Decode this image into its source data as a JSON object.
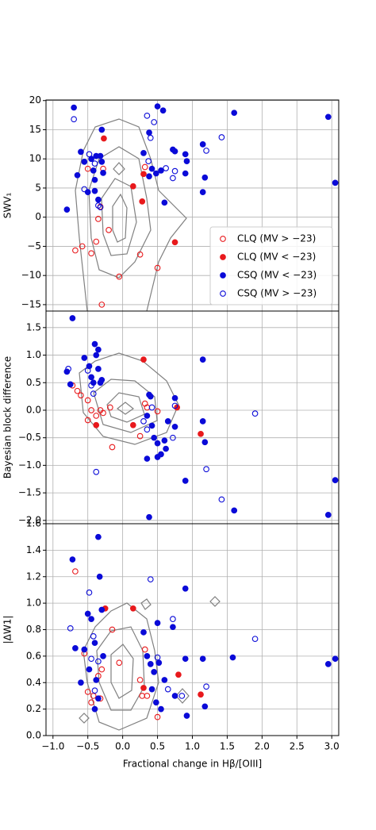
{
  "chart_data": [
    {
      "type": "scatter",
      "ylabel": "SWV₁",
      "xlim": [
        -1.1,
        3.1
      ],
      "ylim": [
        -16.1,
        20.1
      ],
      "yticks": [
        20,
        15,
        10,
        5,
        0,
        {
          "value": -5,
          "label": "−5"
        },
        {
          "value": -10,
          "label": "−10"
        },
        {
          "value": -15,
          "label": "−15"
        }
      ],
      "grid": true,
      "legend": "lower right",
      "series": [
        {
          "name": "CLQ (MV > −23)",
          "color": "#e8191c",
          "filled": false,
          "x": [
            -0.68,
            -0.58,
            -0.45,
            -0.38,
            -0.35,
            -0.32,
            -0.28,
            -0.2,
            -0.05,
            0.25,
            0.32,
            0.5,
            -0.3,
            -0.5
          ],
          "values": [
            -5.7,
            -5.0,
            -6.2,
            -4.2,
            -0.3,
            1.8,
            8.3,
            -2.2,
            -10.2,
            -6.4,
            8.6,
            -8.7,
            -15.0,
            8.3
          ]
        },
        {
          "name": "CLQ (MV < −23)",
          "color": "#e8191c",
          "filled": true,
          "x": [
            -0.27,
            0.15,
            0.28,
            0.3,
            0.75
          ],
          "values": [
            13.5,
            5.3,
            2.7,
            7.4,
            -4.3
          ]
        },
        {
          "name": "CSQ (MV < −23)",
          "color": "#0a0ad8",
          "filled": true,
          "x": [
            -0.7,
            -0.6,
            -0.65,
            -0.55,
            -0.5,
            -0.45,
            -0.42,
            -0.4,
            -0.38,
            -0.35,
            -0.32,
            -0.3,
            -0.28,
            -0.3,
            -0.4,
            -0.8,
            0.3,
            0.38,
            0.42,
            0.48,
            0.5,
            0.55,
            0.58,
            0.6,
            0.72,
            0.75,
            0.9,
            0.9,
            0.92,
            1.15,
            1.15,
            1.18,
            1.6,
            2.95,
            3.05,
            0.38
          ],
          "values": [
            18.8,
            11.2,
            7.2,
            9.5,
            4.3,
            10.0,
            8.0,
            6.4,
            10.5,
            3.0,
            10.5,
            15.0,
            7.6,
            9.5,
            4.5,
            1.3,
            11.0,
            14.5,
            8.3,
            7.5,
            19.0,
            8.0,
            18.3,
            2.5,
            11.6,
            11.3,
            10.8,
            7.5,
            9.6,
            12.5,
            4.3,
            6.8,
            17.9,
            17.2,
            5.9,
            7.0
          ]
        },
        {
          "name": "CSQ (MV > −23)",
          "color": "#0a0ad8",
          "filled": false,
          "x": [
            -0.7,
            -0.55,
            -0.48,
            -0.4,
            -0.35,
            -0.32,
            0.35,
            0.37,
            0.4,
            0.45,
            0.62,
            0.75,
            0.72,
            1.2,
            1.42
          ],
          "values": [
            16.8,
            4.8,
            10.8,
            9.2,
            2.0,
            1.7,
            17.4,
            9.6,
            13.6,
            16.3,
            8.4,
            7.9,
            6.7,
            11.4,
            13.7
          ]
        }
      ]
    },
    {
      "type": "scatter",
      "ylabel": "Bayesian block difference",
      "xlim": [
        -1.1,
        3.1
      ],
      "ylim": [
        -2.06,
        1.8
      ],
      "yticks": [
        1.5,
        {
          "value": 1,
          "label": "1.0"
        },
        0.5,
        {
          "value": 0,
          "label": "0.0"
        },
        {
          "value": -0.5,
          "label": "−0.5"
        },
        {
          "value": -1,
          "label": "−1.0"
        },
        {
          "value": -1.5,
          "label": "−1.5"
        },
        {
          "value": -2,
          "label": "−2.0"
        }
      ],
      "grid": true,
      "series": [
        {
          "color": "#e8191c",
          "filled": false,
          "x": [
            -0.72,
            -0.65,
            -0.6,
            -0.5,
            -0.45,
            -0.5,
            -0.38,
            -0.32,
            -0.28,
            -0.15,
            -0.18,
            0.25,
            0.32,
            0.35,
            0.5
          ],
          "values": [
            0.45,
            0.35,
            0.27,
            0.18,
            0.0,
            -0.18,
            -0.1,
            0.0,
            -0.05,
            -0.67,
            0.05,
            -0.47,
            0.12,
            0.05,
            -0.02
          ]
        },
        {
          "color": "#e8191c",
          "filled": true,
          "x": [
            -0.38,
            0.15,
            0.3,
            0.78,
            1.12
          ],
          "values": [
            -0.27,
            -0.27,
            0.92,
            0.05,
            -0.43
          ]
        },
        {
          "color": "#0a0ad8",
          "filled": true,
          "x": [
            -0.72,
            -0.8,
            -0.75,
            -0.55,
            -0.48,
            -0.45,
            -0.4,
            -0.38,
            -0.35,
            -0.32,
            -0.3,
            -0.42,
            -0.35,
            0.38,
            0.4,
            0.35,
            0.42,
            0.45,
            0.5,
            0.55,
            0.6,
            0.62,
            0.35,
            0.5,
            0.75,
            0.75,
            0.9,
            1.15,
            1.15,
            1.18,
            1.6,
            2.95,
            3.05,
            0.38,
            0.65
          ],
          "values": [
            1.67,
            0.7,
            0.47,
            0.95,
            0.8,
            0.6,
            1.2,
            1.0,
            1.1,
            0.5,
            0.55,
            0.5,
            0.75,
            0.28,
            0.25,
            -0.1,
            -0.28,
            -0.5,
            -0.6,
            -0.8,
            -0.55,
            -0.7,
            -0.88,
            -0.85,
            0.22,
            -0.3,
            -1.28,
            0.92,
            -0.2,
            -0.58,
            -1.82,
            -1.9,
            -1.27,
            -1.94,
            -0.2
          ]
        },
        {
          "color": "#0a0ad8",
          "filled": false,
          "x": [
            -0.78,
            -0.5,
            -0.45,
            -0.42,
            -0.38,
            0.3,
            0.35,
            0.42,
            0.72,
            0.75,
            1.2,
            1.42,
            1.9
          ],
          "values": [
            0.75,
            0.72,
            0.45,
            0.3,
            -1.12,
            -0.2,
            -0.35,
            0.05,
            -0.5,
            0.08,
            -1.07,
            -1.62,
            -0.06
          ]
        }
      ]
    },
    {
      "type": "scatter",
      "ylabel": "|ΔW1|",
      "xlabel": "Fractional change in Hβ/[OIII]",
      "xlim": [
        -1.1,
        3.1
      ],
      "ylim": [
        0,
        1.6
      ],
      "yticks": [
        {
          "value": 0,
          "label": "0.0"
        },
        0.2,
        0.4,
        0.6,
        0.8,
        {
          "value": 1,
          "label": "1.0"
        },
        1.2,
        1.4,
        1.6
      ],
      "xticks": [
        {
          "value": -1,
          "label": "−1.0"
        },
        {
          "value": -0.5,
          "label": "−0.5"
        },
        {
          "value": 0,
          "label": "0.0"
        },
        0.5,
        {
          "value": 1,
          "label": "1.0"
        },
        1.5,
        {
          "value": 2,
          "label": "2.0"
        },
        2.5,
        {
          "value": 3,
          "label": "3.0"
        }
      ],
      "grid": true,
      "series": [
        {
          "color": "#e8191c",
          "filled": false,
          "x": [
            -0.68,
            -0.55,
            -0.5,
            -0.45,
            -0.42,
            -0.35,
            -0.32,
            -0.3,
            -0.15,
            -0.05,
            0.25,
            0.32,
            0.35,
            0.5,
            0.28
          ],
          "values": [
            1.24,
            0.62,
            0.33,
            0.25,
            0.3,
            0.45,
            0.28,
            0.5,
            0.8,
            0.55,
            0.42,
            0.65,
            0.3,
            0.14,
            0.3
          ]
        },
        {
          "color": "#e8191c",
          "filled": true,
          "x": [
            -0.25,
            0.15,
            0.3,
            0.8,
            1.12
          ],
          "values": [
            0.96,
            0.96,
            0.36,
            0.46,
            0.31
          ]
        },
        {
          "color": "#0a0ad8",
          "filled": true,
          "x": [
            -0.72,
            -0.68,
            -0.6,
            -0.55,
            -0.5,
            -0.48,
            -0.45,
            -0.4,
            -0.38,
            -0.35,
            -0.33,
            -0.3,
            -0.28,
            -0.35,
            -0.4,
            0.3,
            0.35,
            0.4,
            0.42,
            0.45,
            0.48,
            0.5,
            0.52,
            0.55,
            0.6,
            0.72,
            0.75,
            0.9,
            0.9,
            0.92,
            1.15,
            1.18,
            1.58,
            2.95,
            3.05
          ],
          "values": [
            1.33,
            0.66,
            0.4,
            0.65,
            0.92,
            0.5,
            0.88,
            0.7,
            0.42,
            1.5,
            1.2,
            0.95,
            0.6,
            0.28,
            0.2,
            0.78,
            0.6,
            0.54,
            0.35,
            0.48,
            0.25,
            0.85,
            0.55,
            0.2,
            0.42,
            0.82,
            0.3,
            0.58,
            1.11,
            0.15,
            0.58,
            0.22,
            0.59,
            0.54,
            0.58
          ]
        },
        {
          "color": "#0a0ad8",
          "filled": false,
          "x": [
            -0.75,
            -0.48,
            -0.45,
            -0.42,
            -0.4,
            -0.35,
            0.4,
            0.5,
            0.72,
            0.65,
            0.85,
            1.2,
            1.9
          ],
          "values": [
            0.81,
            1.08,
            0.58,
            0.75,
            0.34,
            0.56,
            1.18,
            0.59,
            0.88,
            0.35,
            0.3,
            0.37,
            0.73
          ]
        }
      ]
    }
  ]
}
